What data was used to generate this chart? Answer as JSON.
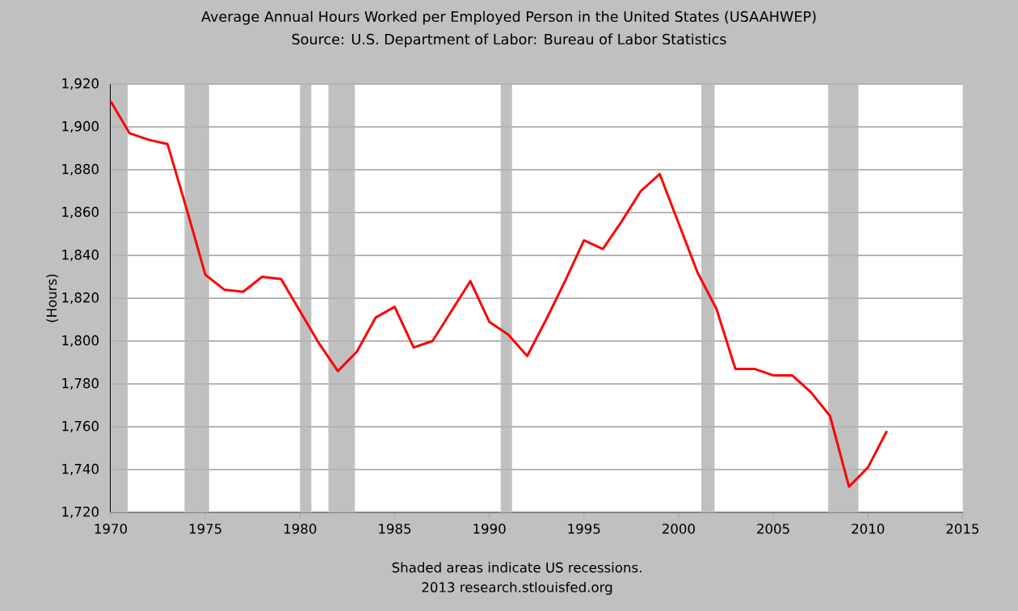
{
  "chart_data": {
    "type": "line",
    "title": "Average Annual Hours Worked per Employed Person in the United States (USAAHWEP)",
    "subtitle": "Source: U.S. Department of Labor: Bureau of Labor Statistics",
    "ylabel": "(Hours)",
    "x": [
      1970,
      1971,
      1972,
      1973,
      1974,
      1975,
      1976,
      1977,
      1978,
      1979,
      1980,
      1981,
      1982,
      1983,
      1984,
      1985,
      1986,
      1987,
      1988,
      1989,
      1990,
      1991,
      1992,
      1993,
      1994,
      1995,
      1996,
      1997,
      1998,
      1999,
      2000,
      2001,
      2002,
      2003,
      2004,
      2005,
      2006,
      2007,
      2008,
      2009,
      2010,
      2011
    ],
    "series": [
      {
        "color": "#ff0000",
        "values": [
          1912,
          1897,
          1894,
          1892,
          1862,
          1831,
          1824,
          1823,
          1830,
          1829,
          1814,
          1799,
          1786,
          1795,
          1811,
          1816,
          1797,
          1800,
          1814,
          1828,
          1809,
          1803,
          1793,
          1810,
          1828,
          1847,
          1843,
          1856,
          1870,
          1878,
          1855,
          1832,
          1815,
          1787,
          1787,
          1784,
          1784,
          1776,
          1765,
          1732,
          1741,
          1758
        ]
      }
    ],
    "xlim": [
      1970,
      2015
    ],
    "xticks": [
      1970,
      1975,
      1980,
      1985,
      1990,
      1995,
      2000,
      2005,
      2010,
      2015
    ],
    "ylim": [
      1720,
      1920
    ],
    "yticks": [
      {
        "value": 1720,
        "label": "1,720"
      },
      {
        "value": 1740,
        "label": "1,740"
      },
      {
        "value": 1760,
        "label": "1,760"
      },
      {
        "value": 1780,
        "label": "1,780"
      },
      {
        "value": 1800,
        "label": "1,800"
      },
      {
        "value": 1820,
        "label": "1,820"
      },
      {
        "value": 1840,
        "label": "1,840"
      },
      {
        "value": 1860,
        "label": "1,860"
      },
      {
        "value": 1880,
        "label": "1,880"
      },
      {
        "value": 1900,
        "label": "1,900"
      },
      {
        "value": 1920,
        "label": "1,920"
      }
    ],
    "grid": "y",
    "bands": [
      {
        "axis": "x",
        "from": 1970.0,
        "to": 1970.9,
        "color": "#c0c0c0"
      },
      {
        "axis": "x",
        "from": 1973.9,
        "to": 1975.2,
        "color": "#c0c0c0"
      },
      {
        "axis": "x",
        "from": 1980.0,
        "to": 1980.6,
        "color": "#c0c0c0"
      },
      {
        "axis": "x",
        "from": 1981.5,
        "to": 1982.9,
        "color": "#c0c0c0"
      },
      {
        "axis": "x",
        "from": 1990.6,
        "to": 1991.2,
        "color": "#c0c0c0"
      },
      {
        "axis": "x",
        "from": 2001.2,
        "to": 2001.9,
        "color": "#c0c0c0"
      },
      {
        "axis": "x",
        "from": 2007.9,
        "to": 2009.5,
        "color": "#c0c0c0"
      }
    ],
    "annotations": [
      "Shaded areas indicate US recessions.",
      "2013 research.stlouisfed.org"
    ]
  }
}
